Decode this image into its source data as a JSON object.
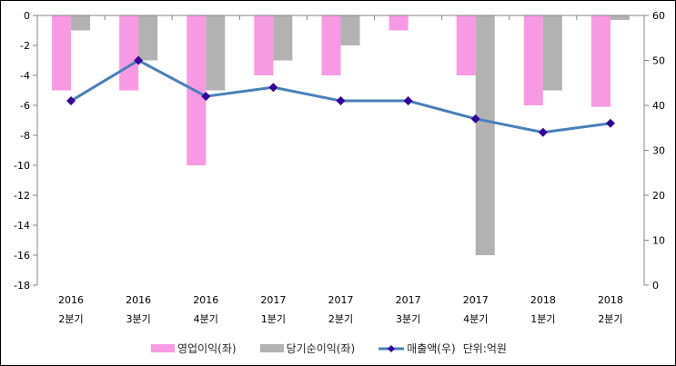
{
  "chart_data": {
    "type": "bar+line",
    "categories": [
      [
        "2016",
        "2분기"
      ],
      [
        "2016",
        "3분기"
      ],
      [
        "2016",
        "4분기"
      ],
      [
        "2017",
        "1분기"
      ],
      [
        "2017",
        "2분기"
      ],
      [
        "2017",
        "3분기"
      ],
      [
        "2017",
        "4분기"
      ],
      [
        "2018",
        "1분기"
      ],
      [
        "2018",
        "2분기"
      ]
    ],
    "series": [
      {
        "name": "영업이익(좌)",
        "type": "bar",
        "axis": "left",
        "color": "#F79AE3",
        "values": [
          -5,
          -5,
          -10,
          -4,
          -4,
          -1,
          -4,
          -6,
          -6.1
        ]
      },
      {
        "name": "당기순이익(좌)",
        "type": "bar",
        "axis": "left",
        "color": "#B2B2B2",
        "values": [
          -1,
          -3,
          -5,
          -3,
          -2,
          0,
          -16,
          -5,
          -0.3
        ]
      },
      {
        "name": "매출액(우)",
        "type": "line",
        "axis": "right",
        "color": "#4A7EBB",
        "marker_color": "#330099",
        "values": [
          41,
          50,
          42,
          44,
          41,
          41,
          37,
          34,
          36
        ]
      }
    ],
    "left_axis": {
      "range": [
        -18,
        0
      ],
      "ticks": [
        0,
        -2,
        -4,
        -6,
        -8,
        -10,
        -12,
        -14,
        -16,
        -18
      ]
    },
    "right_axis": {
      "range": [
        0,
        60
      ],
      "ticks": [
        0,
        10,
        20,
        30,
        40,
        50,
        60
      ]
    },
    "unit_note": "단위:억원",
    "legend_position": "bottom"
  }
}
